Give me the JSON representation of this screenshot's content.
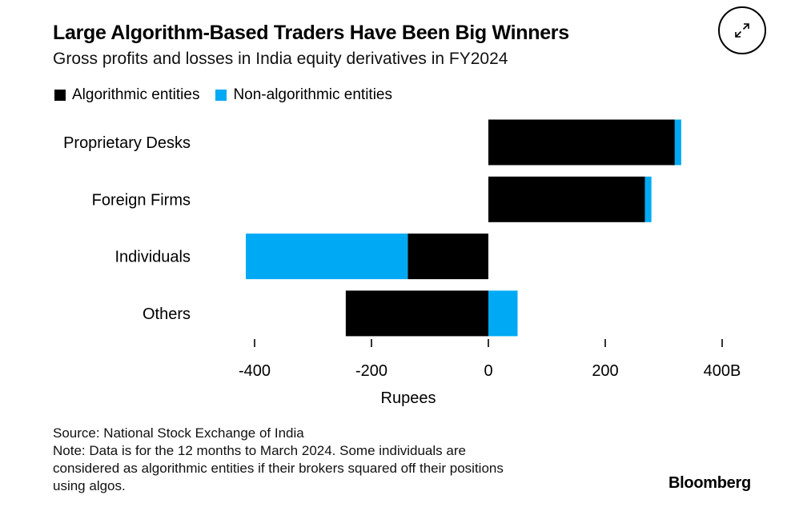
{
  "header": {
    "title": "Large Algorithm-Based Traders Have Been Big Winners",
    "subtitle": "Gross profits and losses in India equity derivatives in FY2024",
    "expand_icon": "expand-icon"
  },
  "colors": {
    "algorithmic": "#000000",
    "non_algorithmic": "#00A9F4"
  },
  "chart_data": {
    "type": "bar",
    "orientation": "horizontal",
    "stacked": true,
    "categories": [
      "Proprietary Desks",
      "Foreign Firms",
      "Individuals",
      "Others"
    ],
    "series": [
      {
        "name": "Algorithmic entities",
        "values": [
          319,
          268,
          -138,
          -244
        ]
      },
      {
        "name": "Non-algorithmic entities",
        "values": [
          11,
          11,
          -277,
          50
        ]
      }
    ],
    "xlabel": "Rupees",
    "ylabel": "",
    "xlim": [
      -400,
      400
    ],
    "xticks": [
      -400,
      -200,
      0,
      200,
      400
    ],
    "xtick_labels": [
      "-400",
      "-200",
      "0",
      "200",
      "400B"
    ],
    "legend_position": "top-left",
    "grid": false
  },
  "footer": {
    "source": "Source: National Stock Exchange of India",
    "note": "Note: Data is for the 12 months to March 2024. Some individuals are",
    "note_line2": "considered as algorithmic entities if their brokers squared off their positions",
    "note_line3": "using algos.",
    "brand": "Bloomberg"
  }
}
